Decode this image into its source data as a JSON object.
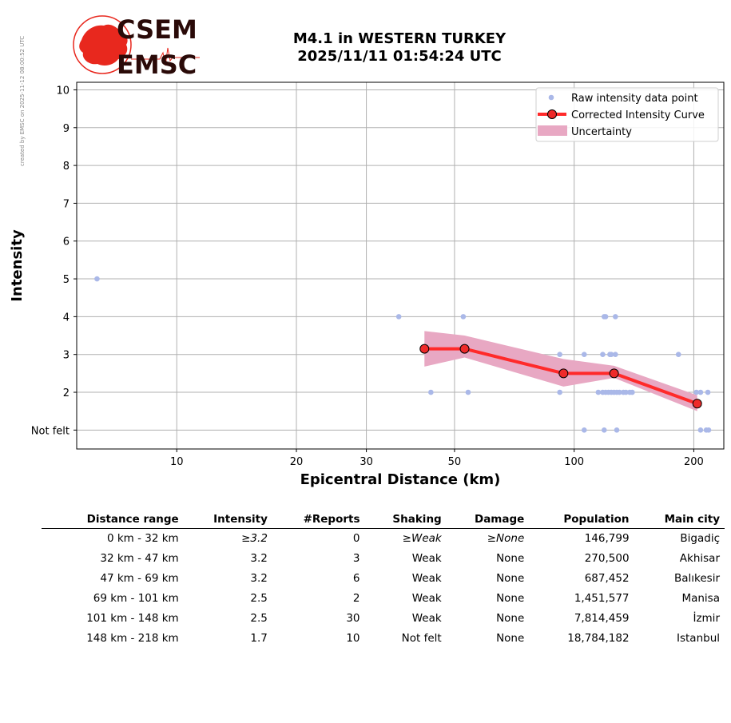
{
  "side_note": "created by EMSC on 2025-11-12 08:00:52 UTC",
  "logo": {
    "top": "CSEM",
    "bottom": "EMSC"
  },
  "title": {
    "line1": "M4.1 in WESTERN TURKEY",
    "line2": "2025/11/11 01:54:24 UTC"
  },
  "colors": {
    "raw": "#aab8e8",
    "curve": "#ff2a2a",
    "marker": "#ee2a2a",
    "uncertainty": "#e8a8c3",
    "grid": "#b0b0b0",
    "logo_red": "#e8281e",
    "logo_dark": "#2a0a08"
  },
  "chart_data": {
    "type": "scatter",
    "xlabel": "Epicentral Distance (km)",
    "ylabel": "Intensity",
    "x_scale": "log",
    "xlim": [
      5.6,
      238
    ],
    "ylim": [
      0.5,
      10.2
    ],
    "x_ticks": [
      10,
      20,
      30,
      50,
      100,
      200
    ],
    "y_ticks": [
      {
        "value": 1,
        "label": "Not felt"
      },
      {
        "value": 2,
        "label": "2"
      },
      {
        "value": 3,
        "label": "3"
      },
      {
        "value": 4,
        "label": "4"
      },
      {
        "value": 5,
        "label": "5"
      },
      {
        "value": 6,
        "label": "6"
      },
      {
        "value": 7,
        "label": "7"
      },
      {
        "value": 8,
        "label": "8"
      },
      {
        "value": 9,
        "label": "9"
      },
      {
        "value": 10,
        "label": "10"
      }
    ],
    "grid": true,
    "legend_position": "top-right",
    "series": [
      {
        "name": "Raw intensity data point",
        "kind": "points",
        "points": [
          [
            6.3,
            5
          ],
          [
            36.2,
            4
          ],
          [
            52.6,
            4
          ],
          [
            119,
            4
          ],
          [
            120,
            4
          ],
          [
            127,
            4
          ],
          [
            92,
            3
          ],
          [
            106,
            3
          ],
          [
            118,
            3
          ],
          [
            123,
            3
          ],
          [
            124,
            3
          ],
          [
            127,
            3
          ],
          [
            183,
            3
          ],
          [
            43.6,
            2
          ],
          [
            54.1,
            2
          ],
          [
            92,
            2
          ],
          [
            115,
            2
          ],
          [
            118,
            2
          ],
          [
            120,
            2
          ],
          [
            122,
            2
          ],
          [
            124,
            2
          ],
          [
            126,
            2
          ],
          [
            128,
            2
          ],
          [
            130,
            2
          ],
          [
            133,
            2
          ],
          [
            135,
            2
          ],
          [
            138,
            2
          ],
          [
            140,
            2
          ],
          [
            203,
            2
          ],
          [
            208,
            2
          ],
          [
            217,
            2
          ],
          [
            106,
            1
          ],
          [
            119,
            1
          ],
          [
            128,
            1
          ],
          [
            208,
            1
          ],
          [
            215,
            1
          ],
          [
            218,
            1
          ]
        ]
      },
      {
        "name": "Corrected Intensity Curve",
        "kind": "line",
        "points": [
          [
            42,
            3.15
          ],
          [
            53,
            3.15
          ],
          [
            94,
            2.5
          ],
          [
            126,
            2.5
          ],
          [
            204,
            1.7
          ]
        ]
      },
      {
        "name": "Uncertainty",
        "kind": "band",
        "upper": [
          [
            42,
            3.62
          ],
          [
            53,
            3.5
          ],
          [
            94,
            2.88
          ],
          [
            126,
            2.7
          ],
          [
            204,
            1.92
          ]
        ],
        "lower": [
          [
            42,
            2.68
          ],
          [
            53,
            2.92
          ],
          [
            94,
            2.15
          ],
          [
            126,
            2.38
          ],
          [
            204,
            1.5
          ]
        ]
      }
    ]
  },
  "table": {
    "headers": [
      "Distance range",
      "Intensity",
      "#Reports",
      "Shaking",
      "Damage",
      "Population",
      "Main city"
    ],
    "rows": [
      {
        "cells": [
          "0 km -   32 km",
          "≥3.2",
          "0",
          "≥Weak",
          "≥None",
          "146,799",
          "Bigadiç"
        ],
        "italic": [
          1,
          3,
          4
        ]
      },
      {
        "cells": [
          "32 km -   47 km",
          "3.2",
          "3",
          "Weak",
          "None",
          "270,500",
          "Akhisar"
        ],
        "italic": []
      },
      {
        "cells": [
          "47 km -   69 km",
          "3.2",
          "6",
          "Weak",
          "None",
          "687,452",
          "Balıkesir"
        ],
        "italic": []
      },
      {
        "cells": [
          "69 km -  101 km",
          "2.5",
          "2",
          "Weak",
          "None",
          "1,451,577",
          "Manisa"
        ],
        "italic": []
      },
      {
        "cells": [
          "101 km -  148 km",
          "2.5",
          "30",
          "Weak",
          "None",
          "7,814,459",
          "İzmir"
        ],
        "italic": []
      },
      {
        "cells": [
          "148 km -  218 km",
          "1.7",
          "10",
          "Not felt",
          "None",
          "18,784,182",
          "Istanbul"
        ],
        "italic": []
      }
    ]
  }
}
